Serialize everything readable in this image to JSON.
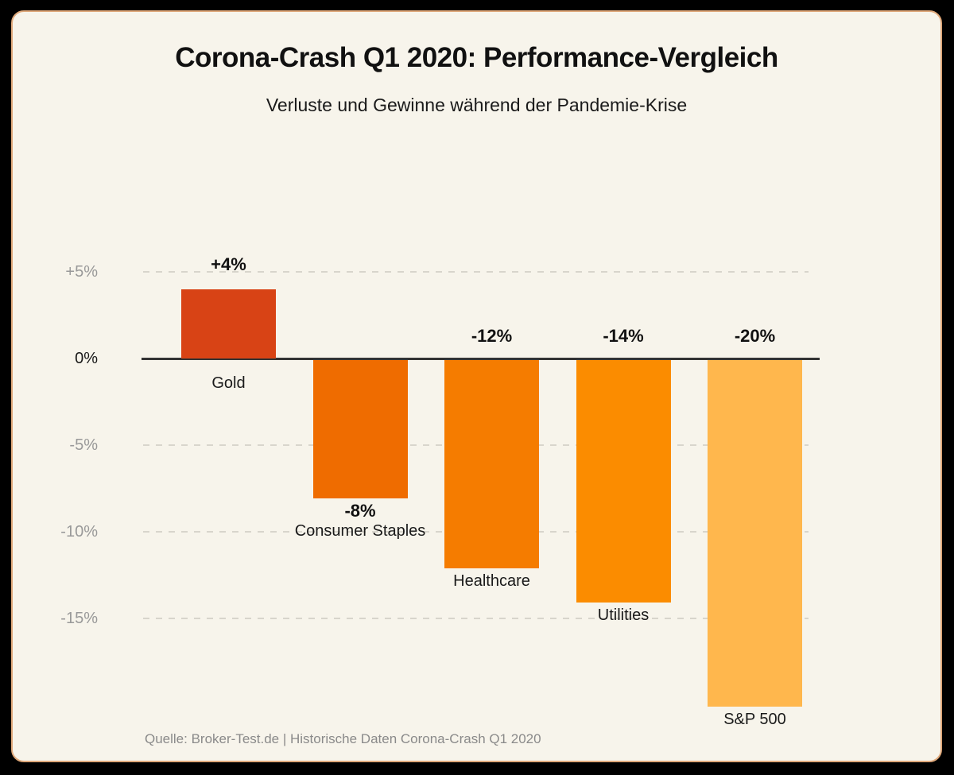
{
  "page": {
    "title": "Corona-Crash Q1 2020: Performance-Vergleich",
    "subtitle": "Verluste und Gewinne während der Pandemie-Krise",
    "source": "Quelle: Broker-Test.de | Historische Daten Corona-Crash Q1 2020"
  },
  "colors": {
    "canvas_bg": "#000000",
    "card_bg": "#F7F4EB",
    "card_border": "#DFA87A",
    "axis_line": "#333333",
    "gridline": "#D8D5CC",
    "tick_label": "#999999",
    "zero_tick_label": "#1A1A1A",
    "label_text": "#111111",
    "source_text": "#8A8A8A"
  },
  "chart_data": {
    "type": "bar",
    "title": "Corona-Crash Q1 2020: Performance-Vergleich",
    "subtitle": "Verluste und Gewinne während der Pandemie-Krise",
    "categories": [
      "Gold",
      "Consumer Staples",
      "Healthcare",
      "Utilities",
      "S&P 500"
    ],
    "values": [
      4,
      -8,
      -12,
      -14,
      -20
    ],
    "value_labels": [
      "+4%",
      "-8%",
      "-12%",
      "-14%",
      "-20%"
    ],
    "bar_colors": [
      "#D84315",
      "#EF6C00",
      "#F57C00",
      "#FB8C00",
      "#FFB74D"
    ],
    "value_label_positions": [
      "above-bar",
      "below-bar",
      "above-axis",
      "above-axis",
      "above-axis"
    ],
    "xlabel": "",
    "ylabel": "",
    "y_axis": {
      "range": [
        -20,
        5
      ],
      "ticks": [
        {
          "label": "+5%",
          "value": 5
        },
        {
          "label": "0%",
          "value": 0
        },
        {
          "label": "-5%",
          "value": -5
        },
        {
          "label": "-10%",
          "value": -10
        },
        {
          "label": "-15%",
          "value": -15
        }
      ],
      "gridline_values": [
        5,
        -5,
        -10,
        -15
      ],
      "grid": "dashed"
    },
    "legend": "none"
  }
}
